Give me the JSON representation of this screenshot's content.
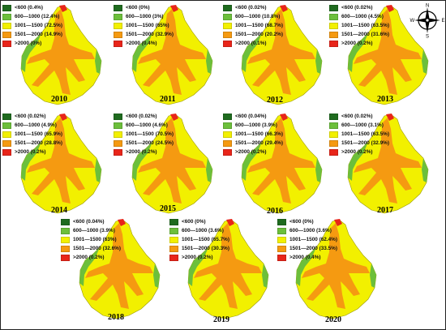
{
  "legend_colors": [
    "#1f6b1f",
    "#6cbf3b",
    "#f2f000",
    "#f59a11",
    "#e8251a"
  ],
  "map_colors": {
    "low": "#6cbf3b",
    "mid": "#f2f000",
    "high": "#f59a11",
    "peak": "#e8251a"
  },
  "compass": {
    "n": "N",
    "s": "S",
    "e": "E",
    "w": "W"
  },
  "panels": [
    {
      "year": "2010",
      "legend": [
        "<600 (0.4%)",
        "600—1000 (12.4%)",
        "1001—1500 (72.5%)",
        "1501—2000 (14.9%)",
        ">2000 (0%)"
      ]
    },
    {
      "year": "2011",
      "legend": [
        "<600 (0%)",
        "600—1000 (3%)",
        "1001—1500 (65%)",
        "1501—2000 (32.9%)",
        ">2000 (0.4%)"
      ]
    },
    {
      "year": "2012",
      "legend": [
        "<600 (0.02%)",
        "600—1000 (10.8%)",
        "1001—1500 (68.7%)",
        "1501—2000 (20.2%)",
        ">2000 (0.1%)"
      ]
    },
    {
      "year": "2013",
      "legend": [
        "<600 (0.02%)",
        "600—1000 (4.5%)",
        "1001—1500 (63.5%)",
        "1501—2000 (31.6%)",
        ">2000 (0.2%)"
      ]
    },
    {
      "year": "2014",
      "legend": [
        "<600 (0.02%)",
        "600—1000 (4.9%)",
        "1001—1500 (65.9%)",
        "1501—2000 (28.8%)",
        ">2000 (0.2%)"
      ]
    },
    {
      "year": "2015",
      "legend": [
        "<600 (0.02%)",
        "600—1000 (4.6%)",
        "1001—1500 (70.5%)",
        "1501—2000 (24.5%)",
        ">2000 (0.2%)"
      ]
    },
    {
      "year": "2016",
      "legend": [
        "<600 (0.04%)",
        "600—1000 (3.9%)",
        "1001—1500 (66.3%)",
        "1501—2000 (29.4%)",
        ">2000 (0.2%)"
      ]
    },
    {
      "year": "2017",
      "legend": [
        "<600 (0.02%)",
        "600—1000 (3.1%)",
        "1001—1500 (63.5%)",
        "1501—2000 (32.9%)",
        ">2000 (0.2%)"
      ]
    },
    {
      "year": "2018",
      "legend": [
        "<600 (0.04%)",
        "600—1000 (3.9%)",
        "1001—1500 (63%)",
        "1501—2000 (32.6%)",
        ">2000 (0.2%)"
      ]
    },
    {
      "year": "2019",
      "legend": [
        "<600 (0%)",
        "600—1000 (3.6%)",
        "1001—1500 (65.7%)",
        "1501—2000 (30.3%)",
        ">2000 (0.2%)"
      ]
    },
    {
      "year": "2020",
      "legend": [
        "<600 (0%)",
        "600—1000 (3.6%)",
        "1001—1500 (62.4%)",
        "1501—2000 (33.5%)",
        ">2000 (0.4%)"
      ]
    }
  ]
}
